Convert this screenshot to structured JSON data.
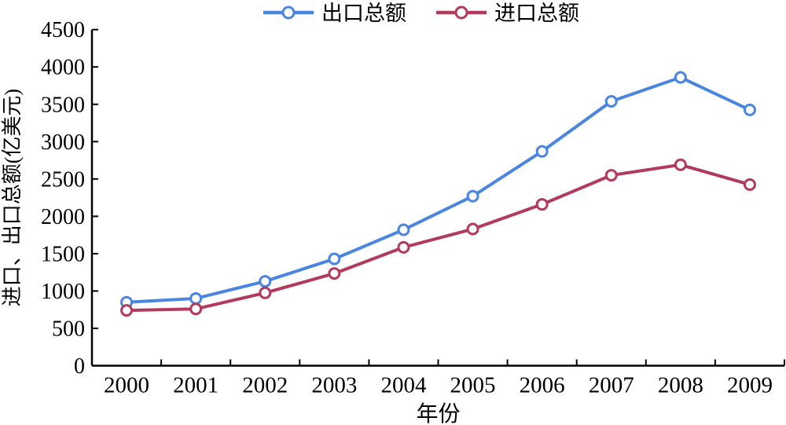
{
  "figure": {
    "background": "#ffffff",
    "axis_color": "#000000",
    "text_color": "#000000"
  },
  "chart_data": {
    "type": "line",
    "title": "",
    "xlabel": "年份",
    "ylabel": "进口、出口总额(亿美元)",
    "x": [
      "2000",
      "2001",
      "2002",
      "2003",
      "2004",
      "2005",
      "2006",
      "2007",
      "2008",
      "2009"
    ],
    "yticks": [
      "0",
      "500",
      "1000",
      "1500",
      "2000",
      "2500",
      "3000",
      "3500",
      "4000",
      "4500"
    ],
    "ylim": [
      0,
      4500
    ],
    "grid": false,
    "legend_position": "top-center",
    "marker_style": "open-circle",
    "series": [
      {
        "name": "出口总额",
        "color": "#4a86e0",
        "values": [
          850,
          900,
          1130,
          1430,
          1820,
          2270,
          2870,
          3540,
          3860,
          3425
        ]
      },
      {
        "name": "进口总额",
        "color": "#b23a5c",
        "values": [
          740,
          760,
          975,
          1235,
          1585,
          1830,
          2160,
          2550,
          2690,
          2425
        ]
      }
    ]
  }
}
